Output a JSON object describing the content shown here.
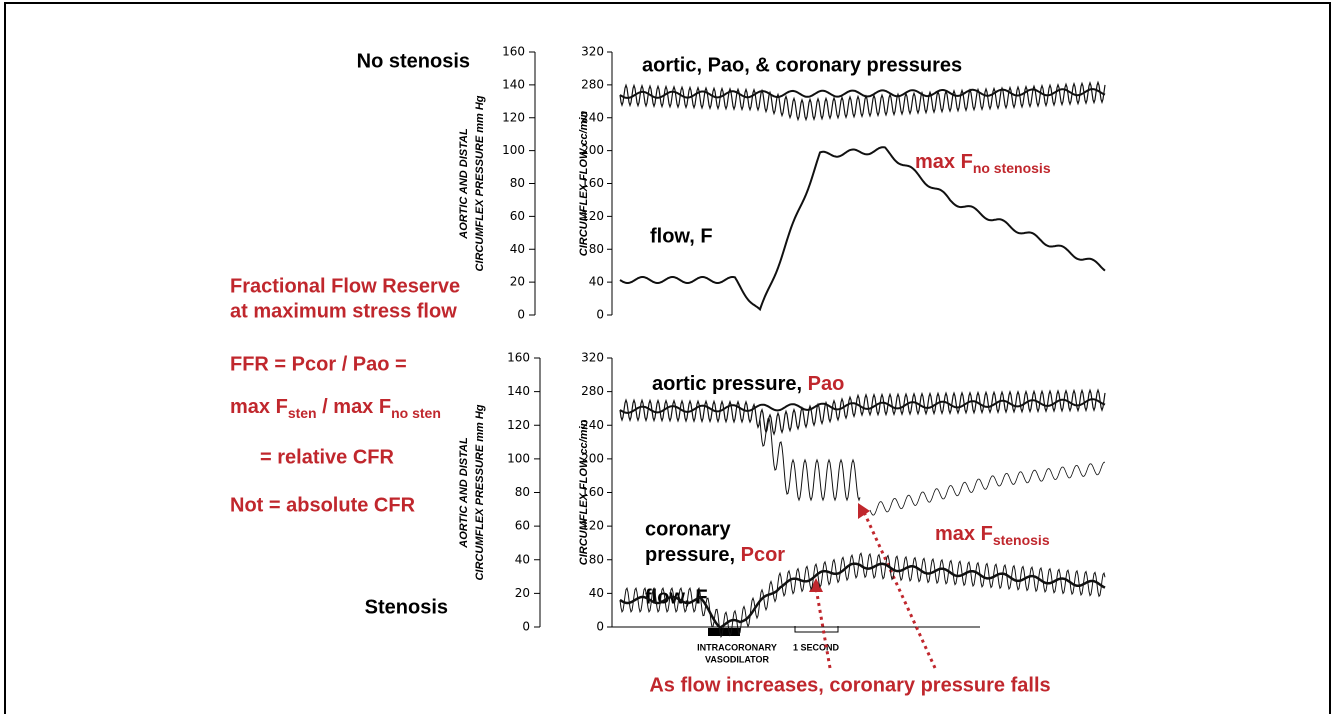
{
  "panels": [
    {
      "label": "No stenosis",
      "pressure_label": "aortic, Pao, & coronary pressures",
      "flow_label": "flow, F",
      "max_label": {
        "main": "max F",
        "sub": "no stenosis"
      }
    },
    {
      "label": "Stenosis",
      "pressure_label": {
        "text": "aortic pressure, ",
        "highlight": "Pao"
      },
      "coronary_label": {
        "line1": "coronary",
        "line2": "pressure, ",
        "highlight": "Pcor"
      },
      "flow_label": "flow, F",
      "max_label": {
        "main": "max F",
        "sub": "stenosis"
      }
    }
  ],
  "left_axis": {
    "title_lines": [
      "AORTIC AND DISTAL",
      "CIRCUMFLEX PRESSURE mm Hg"
    ],
    "ticks": [
      0,
      20,
      40,
      60,
      80,
      100,
      120,
      140,
      160
    ]
  },
  "right_axis": {
    "title": "CIRCUMFLEX FLOW cc/min",
    "ticks": [
      0,
      40,
      80,
      120,
      160,
      200,
      240,
      280,
      320
    ]
  },
  "notes": {
    "ffr_title": [
      "Fractional Flow Reserve",
      "at maximum stress flow"
    ],
    "equation": {
      "line1": "FFR = Pcor / Pao =",
      "part1": "max F",
      "sub1": "sten",
      "part2": " / max F",
      "sub2": "no sten"
    },
    "relative": "= relative CFR",
    "absolute": "Not = absolute CFR"
  },
  "time_axis": {
    "vasodilator": [
      "INTRACORONARY",
      "VASODILATOR"
    ],
    "scale": "1 SECOND"
  },
  "caption": "As flow increases, coronary pressure falls"
}
